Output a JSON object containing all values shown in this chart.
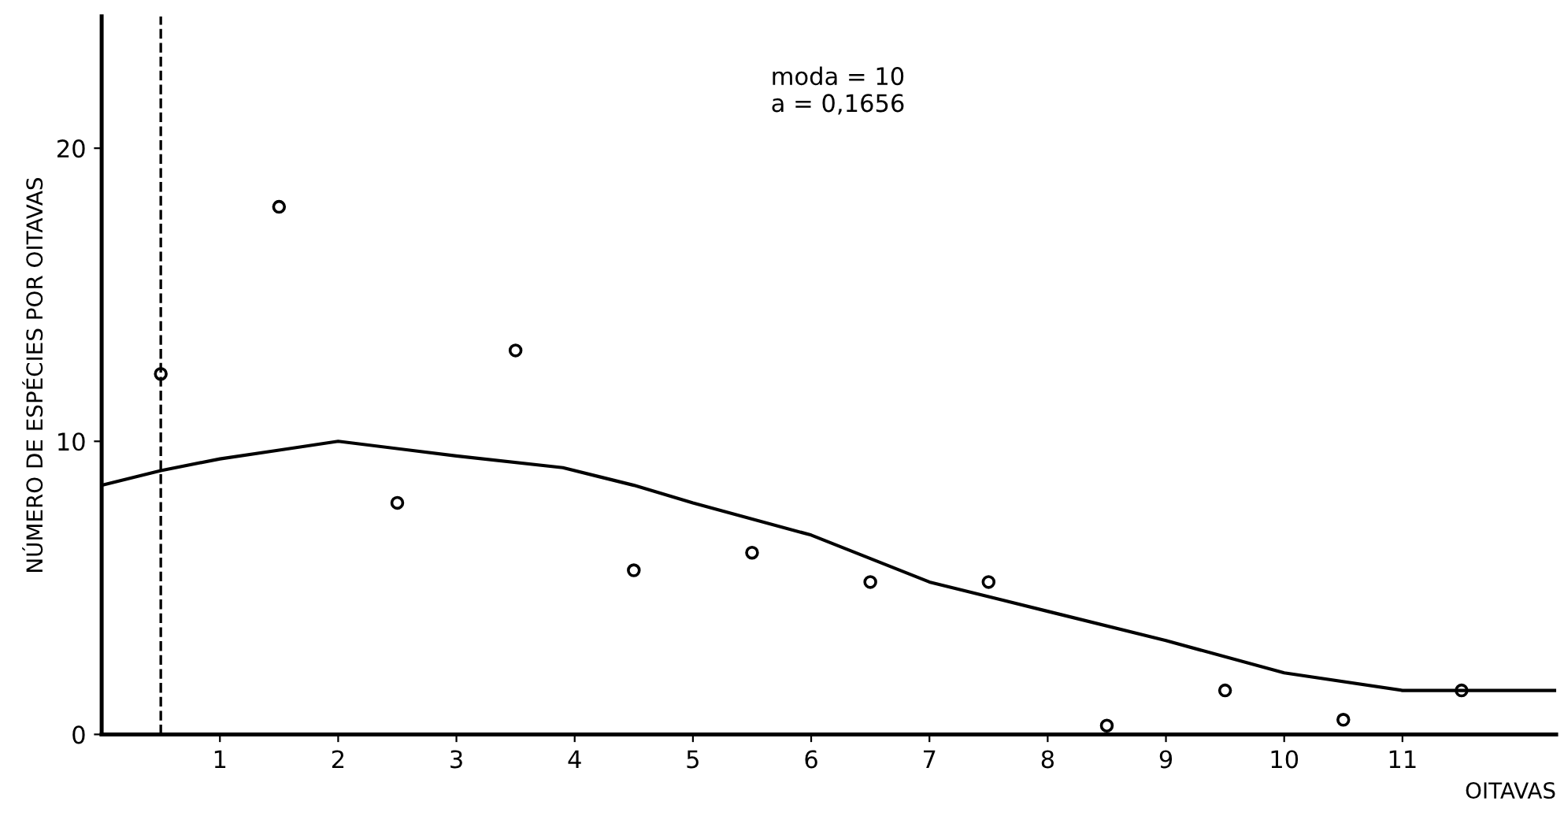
{
  "chart_data": {
    "type": "scatter",
    "xlabel": "OITAVAS",
    "ylabel": "NÚMERO DE ESPÉCIES POR OITAVAS",
    "annotations": [
      "moda = 10\na = 0,1656"
    ],
    "xlim": [
      0,
      12.3
    ],
    "xticks": [
      1,
      2,
      3,
      4,
      5,
      6,
      7,
      8,
      9,
      10,
      11
    ],
    "ylim": [
      0,
      24.5
    ],
    "yticks": [
      0,
      10,
      20
    ],
    "grid": false,
    "legend": false,
    "marker": "circle",
    "ref_lines": [
      {
        "axis": "x",
        "value": 0.5,
        "line_style": "dashed",
        "color": "#000000"
      }
    ],
    "series": [
      {
        "color": "#000000",
        "x": [
          0.5,
          1.5,
          2.5,
          3.5,
          4.5,
          5.5,
          6.5,
          7.5,
          8.5,
          9.5,
          10.5,
          11.5
        ],
        "values": [
          12.3,
          18.0,
          7.9,
          13.1,
          5.6,
          6.2,
          5.2,
          5.2,
          0.3,
          1.5,
          0.5,
          1.5
        ]
      },
      {
        "type": "line",
        "color": "#000000",
        "marker": "none",
        "line_style": "solid",
        "x": [
          0,
          0.5,
          1,
          1.5,
          2,
          3,
          3.9,
          4.5,
          5,
          6,
          6.5,
          7,
          8,
          9,
          10,
          11,
          12.3
        ],
        "values": [
          8.5,
          9.0,
          9.4,
          9.7,
          10.0,
          9.5,
          9.1,
          8.5,
          7.9,
          6.8,
          6.0,
          5.2,
          4.2,
          3.2,
          2.1,
          1.5,
          1.5
        ]
      }
    ]
  }
}
